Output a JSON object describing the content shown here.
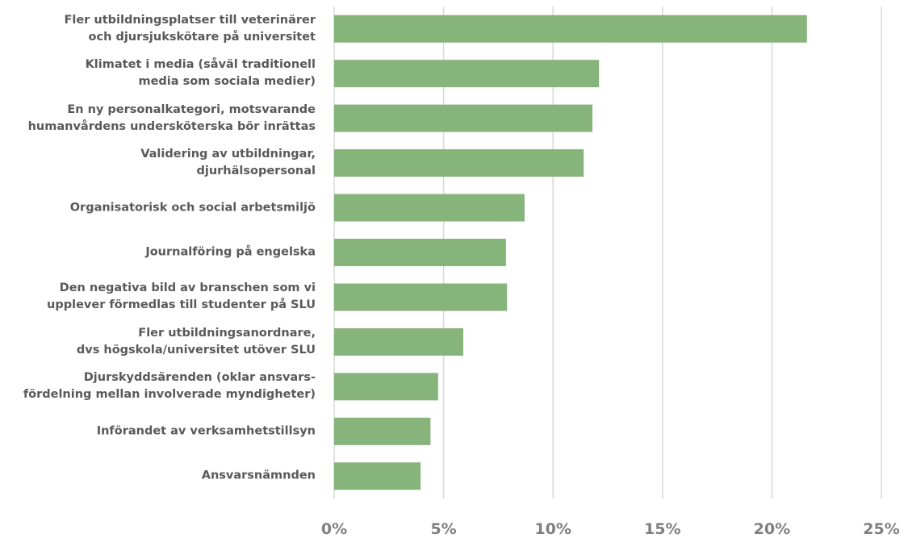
{
  "chart_data": {
    "type": "bar",
    "orientation": "horizontal",
    "categories": [
      "Fler utbildningsplatser till veterinärer\noch djursjukskötare på universitet",
      "Klimatet i media (såväl traditionell\nmedia som sociala medier)",
      "En ny personalkategori, motsvarande\nhumanvårdens undersköterska bör inrättas",
      "Validering av utbildningar,\ndjurhälsopersonal",
      "Organisatorisk och social arbetsmiljö",
      "Journalföring på engelska",
      "Den negativa bild av branschen som vi\nupplever förmedlas till studenter på SLU",
      "Fler utbildningsanordnare,\ndvs högskola/universitet utöver SLU",
      "Djurskyddsärenden (oklar ansvars-\nfördelning mellan involverade myndigheter)",
      "Införandet av verksamhetstillsyn",
      "Ansvarsnämnden"
    ],
    "values": [
      21.6,
      12.1,
      11.8,
      11.4,
      8.7,
      7.85,
      7.9,
      5.9,
      4.75,
      4.4,
      3.95
    ],
    "color": "#86b47a",
    "xlim": [
      0,
      25
    ],
    "xticks": [
      {
        "value": 0,
        "label": "0%"
      },
      {
        "value": 5,
        "label": "5%"
      },
      {
        "value": 10,
        "label": "10%"
      },
      {
        "value": 15,
        "label": "15%"
      },
      {
        "value": 20,
        "label": "20%"
      },
      {
        "value": 25,
        "label": "25%"
      }
    ],
    "grid": true
  }
}
